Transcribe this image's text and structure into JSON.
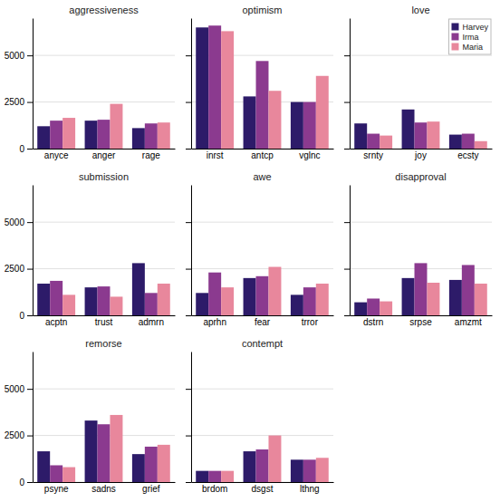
{
  "chart_data": [
    {
      "type": "bar",
      "title": "aggressiveness",
      "categories": [
        "anyce",
        "anger",
        "rage"
      ],
      "series": [
        {
          "name": "Harvey",
          "color": "#2d1b69",
          "values": [
            1200,
            1500,
            1100
          ]
        },
        {
          "name": "Irma",
          "color": "#8b3a8f",
          "values": [
            1500,
            1550,
            1350
          ]
        },
        {
          "name": "Maria",
          "color": "#e8879c",
          "values": [
            1650,
            2400,
            1400
          ]
        }
      ],
      "ylim": [
        0,
        7000
      ],
      "yticks": [
        0,
        2500,
        5000
      ],
      "grid": true
    },
    {
      "type": "bar",
      "title": "optimism",
      "categories": [
        "inrst",
        "antcp",
        "vglnc"
      ],
      "series": [
        {
          "name": "Harvey",
          "color": "#2d1b69",
          "values": [
            6500,
            2800,
            2500
          ]
        },
        {
          "name": "Irma",
          "color": "#8b3a8f",
          "values": [
            6600,
            4700,
            2500
          ]
        },
        {
          "name": "Maria",
          "color": "#e8879c",
          "values": [
            6300,
            3100,
            3900
          ]
        }
      ],
      "ylim": [
        0,
        7000
      ],
      "yticks": [
        0,
        2500,
        5000
      ],
      "grid": true,
      "tick_labels": "x"
    },
    {
      "type": "bar",
      "title": "love",
      "categories": [
        "srnty",
        "joy",
        "ecsty"
      ],
      "series": [
        {
          "name": "Harvey",
          "color": "#2d1b69",
          "values": [
            1350,
            2100,
            750
          ]
        },
        {
          "name": "Irma",
          "color": "#8b3a8f",
          "values": [
            800,
            1400,
            800
          ]
        },
        {
          "name": "Maria",
          "color": "#e8879c",
          "values": [
            700,
            1450,
            400
          ]
        }
      ],
      "ylim": [
        0,
        7000
      ],
      "yticks": [
        0,
        2500,
        5000
      ],
      "grid": true,
      "tick_labels": "x",
      "legend": "upper right"
    },
    {
      "type": "bar",
      "title": "submission",
      "categories": [
        "acptn",
        "trust",
        "admrn"
      ],
      "series": [
        {
          "name": "Harvey",
          "color": "#2d1b69",
          "values": [
            1700,
            1500,
            2800
          ]
        },
        {
          "name": "Irma",
          "color": "#8b3a8f",
          "values": [
            1850,
            1550,
            1200
          ]
        },
        {
          "name": "Maria",
          "color": "#e8879c",
          "values": [
            1100,
            1000,
            1700
          ]
        }
      ],
      "ylim": [
        0,
        7000
      ],
      "yticks": [
        0,
        2500,
        5000
      ],
      "grid": true
    },
    {
      "type": "bar",
      "title": "awe",
      "categories": [
        "aprhn",
        "fear",
        "trror"
      ],
      "series": [
        {
          "name": "Harvey",
          "color": "#2d1b69",
          "values": [
            1200,
            2000,
            1100
          ]
        },
        {
          "name": "Irma",
          "color": "#8b3a8f",
          "values": [
            2300,
            2100,
            1500
          ]
        },
        {
          "name": "Maria",
          "color": "#e8879c",
          "values": [
            1500,
            2600,
            1700
          ]
        }
      ],
      "ylim": [
        0,
        7000
      ],
      "yticks": [
        0,
        2500,
        5000
      ],
      "grid": true,
      "tick_labels": "x"
    },
    {
      "type": "bar",
      "title": "disapproval",
      "categories": [
        "dstrn",
        "srpse",
        "amzmt"
      ],
      "series": [
        {
          "name": "Harvey",
          "color": "#2d1b69",
          "values": [
            700,
            2000,
            1900
          ]
        },
        {
          "name": "Irma",
          "color": "#8b3a8f",
          "values": [
            900,
            2800,
            2700
          ]
        },
        {
          "name": "Maria",
          "color": "#e8879c",
          "values": [
            750,
            1750,
            1700
          ]
        }
      ],
      "ylim": [
        0,
        7000
      ],
      "yticks": [
        0,
        2500,
        5000
      ],
      "grid": true,
      "tick_labels": "x"
    },
    {
      "type": "bar",
      "title": "remorse",
      "categories": [
        "psyne",
        "sadns",
        "grief"
      ],
      "series": [
        {
          "name": "Harvey",
          "color": "#2d1b69",
          "values": [
            1650,
            3300,
            1500
          ]
        },
        {
          "name": "Irma",
          "color": "#8b3a8f",
          "values": [
            900,
            3100,
            1900
          ]
        },
        {
          "name": "Maria",
          "color": "#e8879c",
          "values": [
            800,
            3600,
            2000
          ]
        }
      ],
      "ylim": [
        0,
        7000
      ],
      "yticks": [
        0,
        2500,
        5000
      ],
      "grid": true
    },
    {
      "type": "bar",
      "title": "contempt",
      "categories": [
        "brdom",
        "dsgst",
        "lthng"
      ],
      "series": [
        {
          "name": "Harvey",
          "color": "#2d1b69",
          "values": [
            600,
            1650,
            1200
          ]
        },
        {
          "name": "Irma",
          "color": "#8b3a8f",
          "values": [
            600,
            1750,
            1200
          ]
        },
        {
          "name": "Maria",
          "color": "#e8879c",
          "values": [
            600,
            2500,
            1300
          ]
        }
      ],
      "ylim": [
        0,
        7000
      ],
      "yticks": [
        0,
        2500,
        5000
      ],
      "grid": true,
      "tick_labels": "x"
    }
  ]
}
